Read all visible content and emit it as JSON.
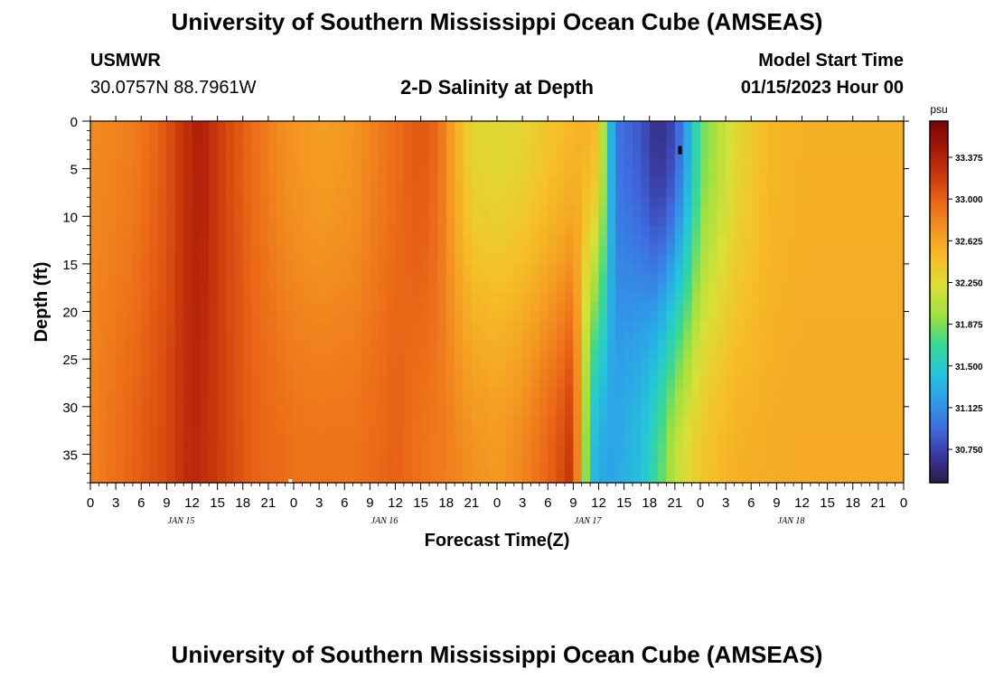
{
  "header": {
    "title": "University of Southern Mississippi Ocean Cube (AMSEAS)",
    "station": "USMWR",
    "coordinates": "30.0757N  88.7961W",
    "subtitle": "2-D Salinity at Depth",
    "model_start_label": "Model Start Time",
    "model_start_time": "01/15/2023 Hour 00"
  },
  "footer": {
    "title": "University of Southern Mississippi Ocean Cube (AMSEAS)"
  },
  "chart_data": {
    "type": "heatmap",
    "title": "2-D Salinity at Depth",
    "xlabel": "Forecast Time(Z)",
    "ylabel": "Depth (ft)",
    "x_range_hours": [
      0,
      96
    ],
    "y_range_ft": [
      0,
      38
    ],
    "x_tick_labels": [
      "0",
      "3",
      "6",
      "9",
      "12",
      "15",
      "18",
      "21",
      "0",
      "3",
      "6",
      "9",
      "12",
      "15",
      "18",
      "21",
      "0",
      "3",
      "6",
      "9",
      "12",
      "15",
      "18",
      "21",
      "0",
      "3",
      "6",
      "9",
      "12",
      "15",
      "18",
      "21",
      "0"
    ],
    "date_labels": [
      {
        "text": "JAN 15",
        "hour": 12
      },
      {
        "text": "JAN 16",
        "hour": 36
      },
      {
        "text": "JAN 17",
        "hour": 60
      },
      {
        "text": "JAN 18",
        "hour": 84
      }
    ],
    "y_ticks": [
      0,
      5,
      10,
      15,
      20,
      25,
      30,
      35
    ],
    "colorbar": {
      "unit": "psu",
      "range": [
        30.45,
        33.7
      ],
      "ticks": [
        "33.375",
        "33.000",
        "32.625",
        "32.250",
        "31.875",
        "31.500",
        "31.125",
        "30.750"
      ],
      "tick_values": [
        33.375,
        33.0,
        32.625,
        32.25,
        31.875,
        31.5,
        31.125,
        30.75
      ],
      "colormap": [
        "#2a1a4a",
        "#3a3aa0",
        "#3f6ce0",
        "#2ea0e8",
        "#24c8d8",
        "#3ad890",
        "#9ee040",
        "#d8e038",
        "#f6c028",
        "#f49a22",
        "#ec6a18",
        "#cc3a0c",
        "#a8180a",
        "#780404"
      ]
    },
    "surface_salinity_by_hour": [
      [
        0,
        32.78
      ],
      [
        5,
        32.85
      ],
      [
        9,
        33.05
      ],
      [
        11,
        33.25
      ],
      [
        13,
        33.42
      ],
      [
        15,
        33.2
      ],
      [
        19,
        32.95
      ],
      [
        23,
        32.75
      ],
      [
        27,
        32.67
      ],
      [
        31,
        32.72
      ],
      [
        35,
        32.9
      ],
      [
        39,
        33.05
      ],
      [
        41,
        32.95
      ],
      [
        43,
        32.6
      ],
      [
        45,
        32.3
      ],
      [
        48,
        32.25
      ],
      [
        51,
        32.3
      ],
      [
        55,
        32.45
      ],
      [
        58,
        32.55
      ],
      [
        60,
        32.45
      ],
      [
        61,
        31.65
      ],
      [
        62,
        31.0
      ],
      [
        65,
        30.85
      ],
      [
        67,
        30.6
      ],
      [
        69,
        30.8
      ],
      [
        71,
        31.4
      ],
      [
        72,
        31.8
      ],
      [
        76,
        32.25
      ],
      [
        80,
        32.5
      ],
      [
        84,
        32.55
      ]
    ],
    "bottom_salinity_by_hour": [
      [
        0,
        32.82
      ],
      [
        9,
        33.12
      ],
      [
        12,
        33.35
      ],
      [
        14,
        33.25
      ],
      [
        19,
        33.0
      ],
      [
        25,
        32.9
      ],
      [
        31,
        32.9
      ],
      [
        36,
        33.0
      ],
      [
        39,
        32.9
      ],
      [
        42,
        32.85
      ],
      [
        45,
        32.75
      ],
      [
        48,
        32.7
      ],
      [
        51,
        32.8
      ],
      [
        55,
        33.05
      ],
      [
        57,
        33.25
      ],
      [
        58,
        32.4
      ],
      [
        59,
        31.4
      ],
      [
        61,
        31.2
      ],
      [
        65,
        31.4
      ],
      [
        67,
        31.7
      ],
      [
        69,
        32.1
      ],
      [
        72,
        32.4
      ],
      [
        76,
        32.55
      ],
      [
        84,
        32.6
      ]
    ],
    "annotations": [
      {
        "type": "marker",
        "hour": 69.6,
        "depth_ft": 3,
        "color": "#000000"
      },
      {
        "type": "marker",
        "hour": 23.6,
        "depth_ft": 38,
        "color": "#ffffff"
      }
    ]
  }
}
